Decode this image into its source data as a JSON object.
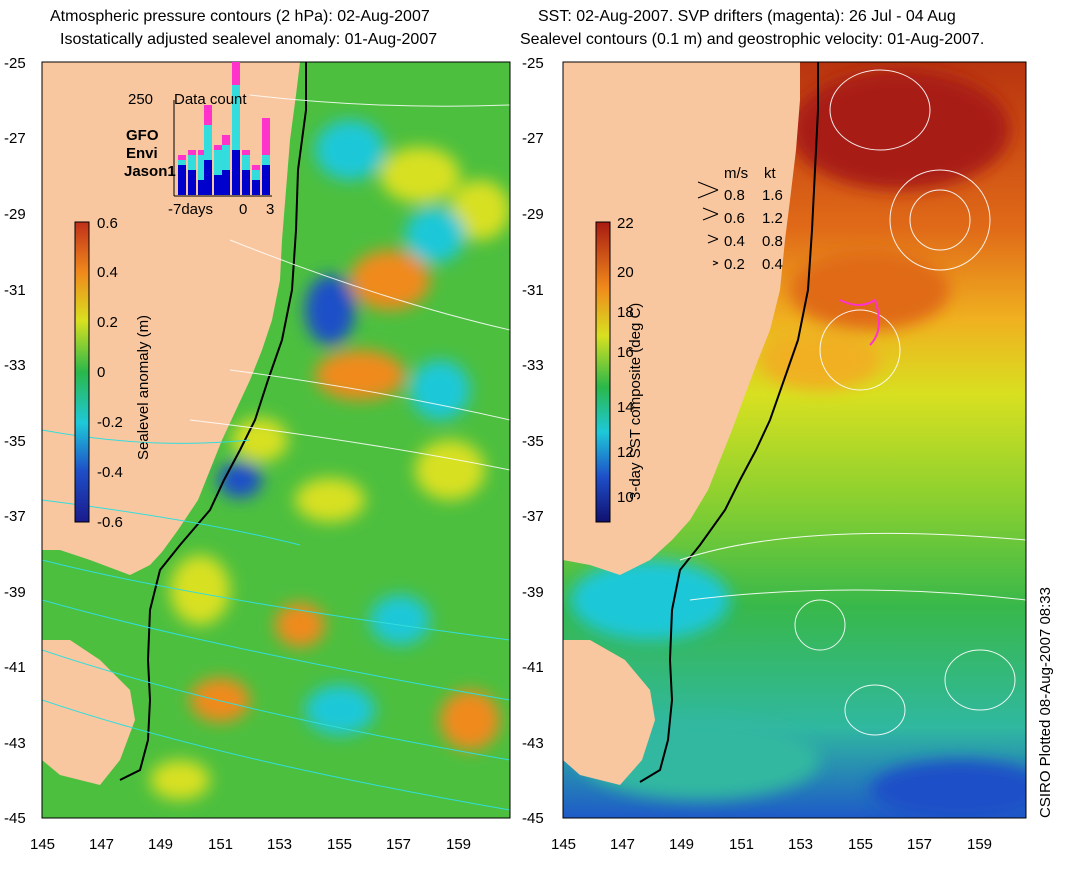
{
  "left_panel": {
    "title_line1": "Atmospheric pressure contours (2 hPa): 02-Aug-2007",
    "title_line2": "Isostatically adjusted sealevel anomaly: 01-Aug-2007",
    "colorbar": {
      "label": "Sealevel anomaly (m)",
      "ticks": [
        "0.6",
        "0.4",
        "0.2",
        "0",
        "-0.2",
        "-0.4",
        "-0.6"
      ]
    },
    "inset": {
      "y_tick": "250",
      "title": "Data count",
      "legend": [
        {
          "name": "GFO",
          "color": "#ff33cc"
        },
        {
          "name": "Envi",
          "color": "#33dddd"
        },
        {
          "name": "Jason1",
          "color": "#0000cc"
        }
      ],
      "x_ticks": [
        "-7days",
        "0",
        "3"
      ]
    }
  },
  "right_panel": {
    "title_line1": "SST: 02-Aug-2007. SVP drifters (magenta): 26 Jul - 04 Aug",
    "title_line2": "Sealevel contours (0.1 m) and geostrophic velocity: 01-Aug-2007.",
    "colorbar": {
      "label": "3-day SST composite (deg C)",
      "ticks": [
        "22",
        "20",
        "18",
        "16",
        "14",
        "12",
        "10"
      ]
    },
    "velocity_key": {
      "header_ms": "m/s",
      "header_kt": "kt",
      "rows": [
        {
          "ms": "0.8",
          "kt": "1.6"
        },
        {
          "ms": "0.6",
          "kt": "1.2"
        },
        {
          "ms": "0.4",
          "kt": "0.8"
        },
        {
          "ms": "0.2",
          "kt": "0.4"
        }
      ]
    }
  },
  "axes": {
    "lat_ticks": [
      "-25",
      "-27",
      "-29",
      "-31",
      "-33",
      "-35",
      "-37",
      "-39",
      "-41",
      "-43",
      "-45"
    ],
    "lon_ticks": [
      "145",
      "147",
      "149",
      "151",
      "153",
      "155",
      "157",
      "159"
    ]
  },
  "credit": "CSIRO Plotted 08-Aug-2007 08:33",
  "colors": {
    "land": "#f9c79f",
    "coast": "#000000",
    "sla_pos": "#f08a1c",
    "sla_neg": "#1e4fc8",
    "sst_warm": "#c2410f",
    "sst_cold": "#0e3fa8"
  }
}
